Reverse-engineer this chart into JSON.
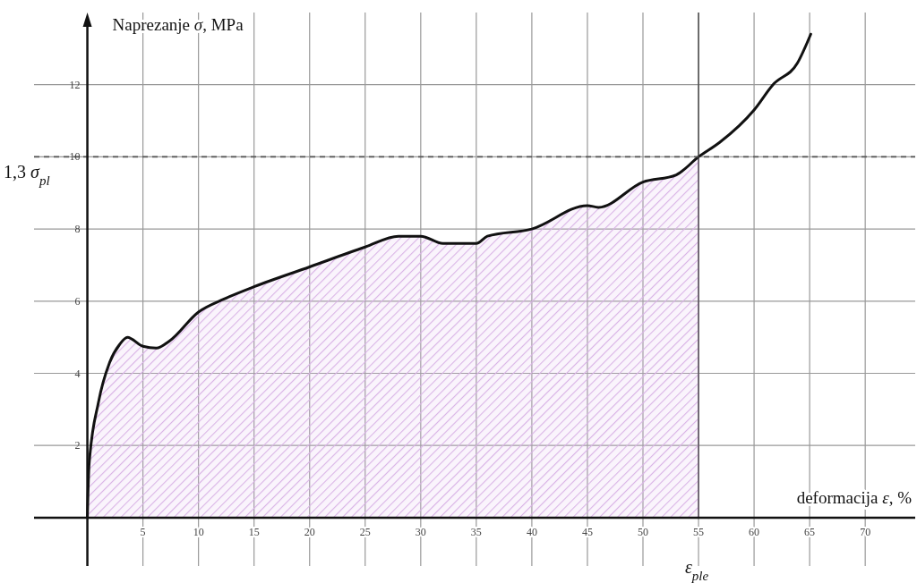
{
  "chart_data": {
    "type": "line",
    "xlabel": "deformacija ε, %",
    "ylabel": "Naprezanje σ, MPa",
    "xlim": [
      -4.8,
      74.5
    ],
    "ylim": [
      -1.34,
      14
    ],
    "xticks": [
      5,
      10,
      15,
      20,
      25,
      30,
      35,
      40,
      45,
      50,
      55,
      60,
      65,
      70
    ],
    "yticks": [
      2,
      4,
      6,
      8,
      10,
      12
    ],
    "grid": true,
    "marker": "none",
    "line_style": "solid",
    "series": [
      {
        "type": "area",
        "color": "#d9b3e6",
        "x": [
          0,
          0.15,
          1,
          2,
          2.9,
          3.6,
          5,
          6.2,
          7.4,
          10,
          12.3,
          15,
          20,
          25,
          28,
          30,
          32,
          35,
          36,
          40,
          45,
          46,
          50,
          53,
          55
        ],
        "values": [
          0,
          1.45,
          3.2,
          4.3,
          4.8,
          5.0,
          4.75,
          4.7,
          4.9,
          5.7,
          6.06,
          6.4,
          6.95,
          7.5,
          7.8,
          7.8,
          7.6,
          7.6,
          7.8,
          8.0,
          8.65,
          8.6,
          9.3,
          9.5,
          10.0
        ]
      },
      {
        "color": "#111111",
        "x": [
          0,
          0.15,
          1,
          2,
          2.9,
          3.6,
          5,
          6.2,
          7.4,
          10,
          12.3,
          15,
          20,
          25,
          28,
          30,
          32,
          35,
          36,
          40,
          45,
          46,
          50,
          53,
          55,
          56.9,
          60,
          61.7,
          63.9,
          65.1
        ],
        "values": [
          0,
          1.45,
          3.2,
          4.3,
          4.8,
          5.0,
          4.75,
          4.7,
          4.9,
          5.7,
          6.06,
          6.4,
          6.95,
          7.5,
          7.8,
          7.8,
          7.6,
          7.6,
          7.8,
          8.0,
          8.65,
          8.6,
          9.3,
          9.5,
          10.0,
          10.4,
          11.3,
          12.0,
          12.6,
          13.4
        ]
      }
    ],
    "ref_lines": [
      {
        "axis": "y",
        "value": 10,
        "label": "1,3 σ$_{pl}$",
        "color": "#555555",
        "line_style": "dashed"
      },
      {
        "axis": "x",
        "value": 55,
        "label": "ε$_{ple}$",
        "color": "#333333",
        "line_style": "solid"
      }
    ]
  }
}
